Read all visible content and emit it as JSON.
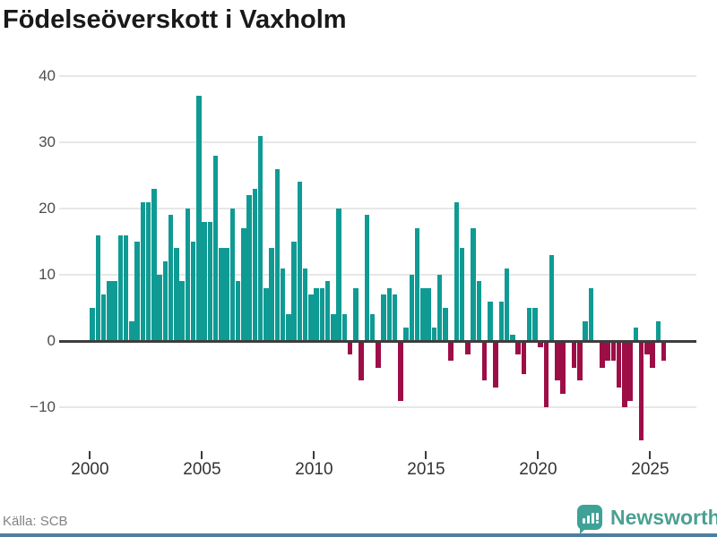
{
  "title": "Födelseöverskott i Vaxholm",
  "source": "Källa: SCB",
  "brand": {
    "name": "Newsworthy",
    "badge_color": "#3EA296",
    "text_color": "#4BA092"
  },
  "colors": {
    "positive": "#0F9B94",
    "negative": "#9D0E47",
    "axis": "#3d3d3d",
    "grid": "#e7e7e7",
    "y_label": "#4d4d4d",
    "x_label": "#333333",
    "source_text": "#828282",
    "bottom_strip": "#4C7EA0"
  },
  "chart_data": {
    "type": "bar",
    "title": "Födelseöverskott i Vaxholm",
    "xlabel": "",
    "ylabel": "",
    "period": "quarterly",
    "start_period": "2000Q1",
    "end_period": "2025Q3",
    "x_tick_labels": [
      "2000",
      "2005",
      "2010",
      "2015",
      "2020",
      "2025"
    ],
    "y_ticks": [
      40,
      30,
      20,
      10,
      0,
      -10
    ],
    "ylim": [
      -16,
      42
    ],
    "grid": true,
    "legend_position": "none",
    "values": [
      5,
      16,
      7,
      9,
      9,
      16,
      16,
      3,
      15,
      21,
      21,
      23,
      10,
      12,
      19,
      14,
      9,
      20,
      15,
      37,
      18,
      18,
      28,
      14,
      14,
      20,
      9,
      17,
      22,
      23,
      31,
      8,
      14,
      26,
      11,
      4,
      15,
      24,
      11,
      7,
      8,
      8,
      9,
      4,
      20,
      4,
      -2,
      8,
      -6,
      19,
      4,
      -4,
      7,
      8,
      7,
      -9,
      2,
      10,
      17,
      8,
      8,
      2,
      10,
      5,
      -3,
      21,
      14,
      -2,
      17,
      9,
      -6,
      6,
      -7,
      6,
      11,
      1,
      -2,
      -5,
      5,
      5,
      -1,
      -10,
      13,
      -6,
      -8,
      0,
      -4,
      -6,
      3,
      8,
      0,
      -4,
      -3,
      -3,
      -7,
      -10,
      -9,
      2,
      -15,
      -2,
      -4,
      3,
      -3
    ]
  }
}
